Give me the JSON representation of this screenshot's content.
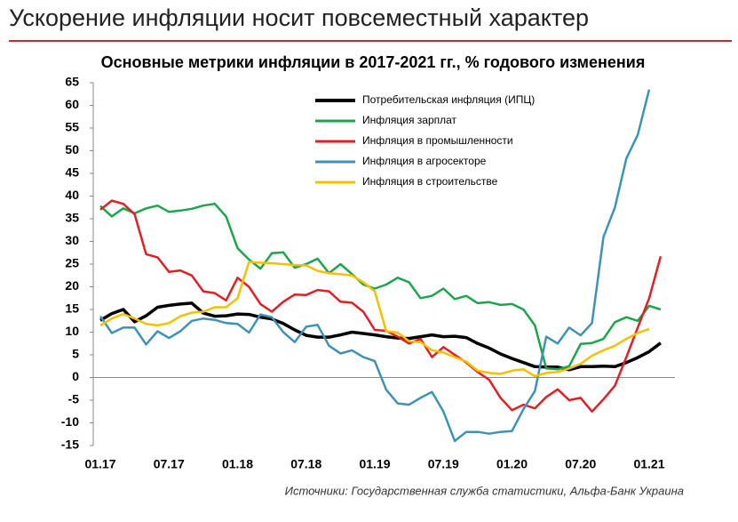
{
  "header": {
    "title": "Ускорение инфляции носит повсеместный характер"
  },
  "chart_data": {
    "type": "line",
    "title": "Основные метрики инфляции в 2017-2021 гг., % годового изменения",
    "categories": [
      "01.17",
      null,
      null,
      null,
      null,
      null,
      "07.17",
      null,
      null,
      null,
      null,
      null,
      "01.18",
      null,
      null,
      null,
      null,
      null,
      "07.18",
      null,
      null,
      null,
      null,
      null,
      "01.19",
      null,
      null,
      null,
      null,
      null,
      "07.19",
      null,
      null,
      null,
      null,
      null,
      "01.20",
      null,
      null,
      null,
      null,
      null,
      "07.20",
      null,
      null,
      null,
      null,
      null,
      "01.21",
      null
    ],
    "series": [
      {
        "name": "Потребительская инфляция (ИПЦ)",
        "color": "#000000",
        "width": 3.5,
        "values": [
          12.6,
          14.1,
          15.0,
          12.3,
          13.6,
          15.5,
          15.9,
          16.2,
          16.4,
          14.2,
          13.5,
          13.6,
          14.0,
          13.9,
          13.3,
          12.9,
          11.9,
          10.5,
          9.3,
          8.9,
          8.9,
          9.4,
          10.0,
          9.7,
          9.4,
          9.0,
          8.7,
          8.6,
          9.0,
          9.4,
          9.0,
          9.1,
          8.8,
          7.5,
          6.5,
          5.2,
          4.2,
          3.3,
          2.4,
          2.3,
          2.3,
          1.7,
          2.4,
          2.4,
          2.5,
          2.4,
          3.3,
          4.4,
          5.7,
          7.6
        ]
      },
      {
        "name": "Инфляция зарплат",
        "color": "#1aa64a",
        "width": 2.5,
        "values": [
          37.8,
          35.5,
          37.3,
          36.2,
          37.3,
          37.9,
          36.5,
          36.8,
          37.2,
          37.9,
          38.3,
          35.5,
          28.5,
          26.0,
          24.0,
          27.4,
          27.6,
          24.2,
          25.0,
          26.2,
          23.0,
          25.0,
          22.8,
          20.5,
          19.6,
          20.5,
          22.0,
          21.0,
          17.5,
          18.0,
          19.6,
          17.3,
          18.0,
          16.4,
          16.6,
          16.0,
          16.2,
          15.0,
          11.5,
          2.0,
          1.8,
          2.5,
          7.4,
          7.6,
          8.5,
          12.2,
          13.3,
          12.5,
          15.8,
          15.0
        ]
      },
      {
        "name": "Инфляция в промышленности",
        "color": "#e31e24",
        "width": 2.5,
        "values": [
          37.0,
          39.0,
          38.3,
          36.0,
          27.2,
          26.5,
          23.3,
          23.6,
          22.5,
          19.0,
          18.6,
          17.0,
          22.0,
          20.0,
          16.2,
          14.5,
          16.7,
          18.3,
          18.2,
          19.3,
          19.0,
          16.7,
          16.5,
          14.5,
          10.5,
          10.3,
          9.0,
          7.5,
          8.5,
          4.5,
          6.7,
          5.0,
          3.3,
          1.2,
          -0.5,
          -4.5,
          -7.2,
          -6.0,
          -6.8,
          -4.3,
          -2.6,
          -5.0,
          -4.5,
          -7.5,
          -4.8,
          -1.8,
          4.5,
          11.0,
          17.5,
          26.7
        ]
      },
      {
        "name": "Инфляция в агросекторе",
        "color": "#3d93b5",
        "width": 2.5,
        "values": [
          13.5,
          9.8,
          11.0,
          11.0,
          7.3,
          10.2,
          8.7,
          10.2,
          12.5,
          13.0,
          12.7,
          12.0,
          11.8,
          9.9,
          13.9,
          13.3,
          10.0,
          7.8,
          11.2,
          11.6,
          7.0,
          5.3,
          6.0,
          4.5,
          3.6,
          -2.7,
          -5.7,
          -6.0,
          -4.5,
          -3.2,
          -7.5,
          -14.0,
          -12.0,
          -12.0,
          -12.4,
          -12.0,
          -11.8,
          -7.0,
          -3.0,
          9.0,
          7.5,
          11.0,
          9.3,
          12.0,
          31.0,
          37.5,
          48.3,
          53.5,
          63.5,
          null
        ]
      },
      {
        "name": "Инфляция в строительстве",
        "color": "#f5c000",
        "width": 2.5,
        "values": [
          11.5,
          13.0,
          14.0,
          13.0,
          11.8,
          11.5,
          12.0,
          13.5,
          14.3,
          14.5,
          15.5,
          15.5,
          17.5,
          25.5,
          25.3,
          25.2,
          25.0,
          24.8,
          24.7,
          23.5,
          23.0,
          22.8,
          22.5,
          21.0,
          19.0,
          10.2,
          9.9,
          8.0,
          7.8,
          6.0,
          5.5,
          4.5,
          3.5,
          1.5,
          1.0,
          0.8,
          1.5,
          1.8,
          0.3,
          1.0,
          1.2,
          2.0,
          3.0,
          4.8,
          6.0,
          7.0,
          8.5,
          9.8,
          10.7,
          null
        ]
      }
    ],
    "ylim": [
      -15,
      65
    ],
    "yticks": [
      -15,
      -10,
      -5,
      0,
      5,
      10,
      15,
      20,
      25,
      30,
      35,
      40,
      45,
      50,
      55,
      60,
      65
    ],
    "legend": "top-center",
    "source": "Источники: Государственная служба статистики, Альфа-Банк Украина"
  }
}
